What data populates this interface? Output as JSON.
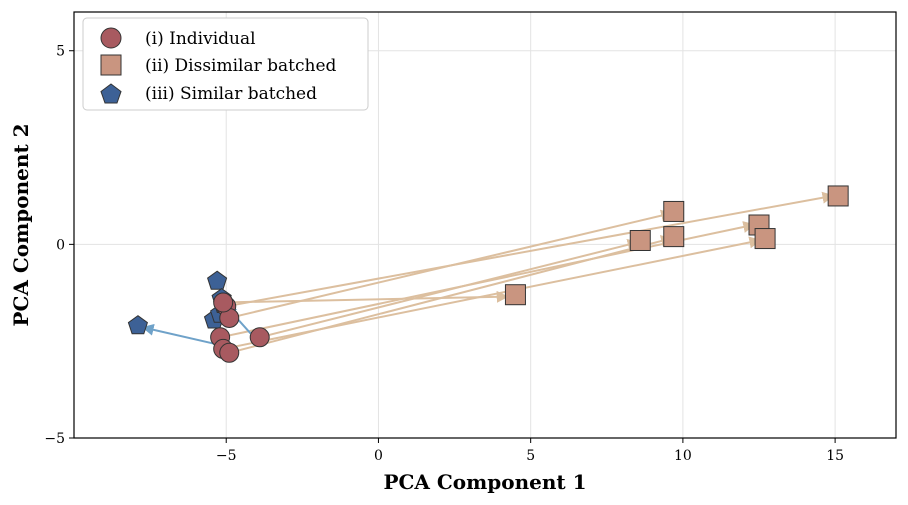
{
  "chart_data": {
    "type": "scatter",
    "xlabel": "PCA Component 1",
    "ylabel": "PCA Component 2",
    "xlim": [
      -10,
      17
    ],
    "ylim": [
      -5,
      6
    ],
    "xticks": [
      -5,
      0,
      5,
      10,
      15
    ],
    "yticks": [
      -5,
      0,
      5
    ],
    "xtick_labels": [
      "−5",
      "0",
      "5",
      "10",
      "15"
    ],
    "ytick_labels": [
      "−5",
      "0",
      "5"
    ],
    "grid": true,
    "legend_position": "top-left",
    "colors": {
      "individual": "#a85a60",
      "dissimilar": "#c99580",
      "similar": "#3d6196",
      "arrow_dissimilar": "#dcbf9f",
      "arrow_similar": "#6fa2c9"
    },
    "series": [
      {
        "name": "(i) Individual",
        "marker": "circle",
        "points": [
          [
            -5.0,
            -1.6
          ],
          [
            -4.9,
            -1.9
          ],
          [
            -5.2,
            -2.4
          ],
          [
            -5.1,
            -2.7
          ],
          [
            -4.9,
            -2.8
          ],
          [
            -3.9,
            -2.4
          ],
          [
            -5.1,
            -1.5
          ]
        ]
      },
      {
        "name": "(ii) Dissimilar batched",
        "marker": "square",
        "points": [
          [
            15.1,
            1.25
          ],
          [
            9.7,
            0.85
          ],
          [
            12.5,
            0.5
          ],
          [
            12.7,
            0.15
          ],
          [
            9.7,
            0.2
          ],
          [
            8.6,
            0.1
          ],
          [
            4.5,
            -1.3
          ]
        ]
      },
      {
        "name": "(iii) Similar batched",
        "marker": "pentagon",
        "points": [
          [
            -7.9,
            -2.1
          ],
          [
            -5.3,
            -0.95
          ],
          [
            -5.15,
            -1.4
          ],
          [
            -5.4,
            -1.95
          ],
          [
            -5.2,
            -1.8
          ],
          [
            -5.1,
            -1.55
          ]
        ]
      }
    ],
    "arrows_dissimilar": [
      {
        "from": [
          -5.0,
          -1.6
        ],
        "to": [
          14.9,
          1.25
        ]
      },
      {
        "from": [
          -4.9,
          -1.9
        ],
        "to": [
          9.6,
          0.8
        ]
      },
      {
        "from": [
          -5.2,
          -2.4
        ],
        "to": [
          12.3,
          0.5
        ]
      },
      {
        "from": [
          -5.1,
          -2.7
        ],
        "to": [
          12.5,
          0.1
        ]
      },
      {
        "from": [
          -4.9,
          -2.8
        ],
        "to": [
          9.6,
          0.15
        ]
      },
      {
        "from": [
          -3.9,
          -2.4
        ],
        "to": [
          8.5,
          0.05
        ]
      },
      {
        "from": [
          -5.1,
          -1.5
        ],
        "to": [
          4.2,
          -1.35
        ]
      }
    ],
    "arrows_similar": [
      {
        "from": [
          -5.2,
          -2.6
        ],
        "to": [
          -7.7,
          -2.15
        ]
      },
      {
        "from": [
          -4.2,
          -2.3
        ],
        "to": [
          -5.0,
          -1.6
        ]
      }
    ]
  }
}
